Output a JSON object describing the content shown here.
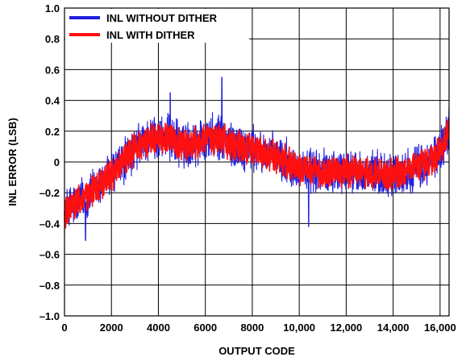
{
  "chart_data": {
    "type": "line",
    "xlabel": "OUTPUT CODE",
    "ylabel": "INL ERROR (LSB)",
    "xlim": [
      0,
      16383
    ],
    "ylim": [
      -1.0,
      1.0
    ],
    "x_ticks": [
      0,
      2000,
      4000,
      6000,
      8000,
      10000,
      12000,
      14000,
      16000
    ],
    "x_tick_labels": [
      "0",
      "2000",
      "4000",
      "6000",
      "8000",
      "10,000",
      "12,000",
      "14,000",
      "16,000"
    ],
    "y_ticks": [
      1.0,
      0.8,
      0.6,
      0.4,
      0.2,
      0,
      -0.2,
      -0.4,
      -0.6,
      -0.8,
      -1.0
    ],
    "y_tick_labels": [
      "1.0",
      "0.8",
      "0.6",
      "0.4",
      "0.2",
      "0",
      "–0.2",
      "–0.4",
      "–0.6",
      "–0.8",
      "–1.0"
    ],
    "grid": true,
    "legend": "top-left",
    "series": [
      {
        "name": "INL WITHOUT DITHER",
        "color": "#1f1fdf",
        "x": [
          0,
          500,
          1000,
          1500,
          2000,
          2500,
          3000,
          3500,
          4000,
          4500,
          5000,
          5500,
          6000,
          6500,
          7000,
          7500,
          8000,
          8500,
          9000,
          9500,
          10000,
          10500,
          11000,
          11500,
          12000,
          12500,
          13000,
          13500,
          14000,
          14500,
          15000,
          15500,
          16000,
          16383
        ],
        "y": [
          -0.33,
          -0.27,
          -0.22,
          -0.15,
          -0.08,
          0.0,
          0.08,
          0.14,
          0.16,
          0.15,
          0.11,
          0.12,
          0.15,
          0.16,
          0.12,
          0.1,
          0.08,
          0.06,
          0.03,
          0.0,
          -0.04,
          -0.06,
          -0.07,
          -0.05,
          -0.06,
          -0.07,
          -0.07,
          -0.08,
          -0.08,
          -0.07,
          -0.04,
          -0.01,
          0.08,
          0.2
        ],
        "noise_envelope": 0.13,
        "extremes": [
          {
            "x": 900,
            "y": -0.51
          },
          {
            "x": 6700,
            "y": 0.55
          },
          {
            "x": 4500,
            "y": 0.45
          },
          {
            "x": 10400,
            "y": -0.42
          }
        ]
      },
      {
        "name": "INL WITH DITHER",
        "color": "#ff1010",
        "x": [
          0,
          500,
          1000,
          1500,
          2000,
          2500,
          3000,
          3500,
          4000,
          4500,
          5000,
          5500,
          6000,
          6500,
          7000,
          7500,
          8000,
          8500,
          9000,
          9500,
          10000,
          10500,
          11000,
          11500,
          12000,
          12500,
          13000,
          13500,
          14000,
          14500,
          15000,
          15500,
          16000,
          16383
        ],
        "y": [
          -0.33,
          -0.27,
          -0.22,
          -0.15,
          -0.08,
          0.0,
          0.08,
          0.14,
          0.16,
          0.15,
          0.11,
          0.12,
          0.15,
          0.16,
          0.12,
          0.1,
          0.08,
          0.06,
          0.03,
          0.0,
          -0.04,
          -0.06,
          -0.07,
          -0.05,
          -0.06,
          -0.07,
          -0.07,
          -0.08,
          -0.08,
          -0.07,
          -0.04,
          -0.01,
          0.08,
          0.2
        ],
        "noise_envelope": 0.09
      }
    ]
  }
}
